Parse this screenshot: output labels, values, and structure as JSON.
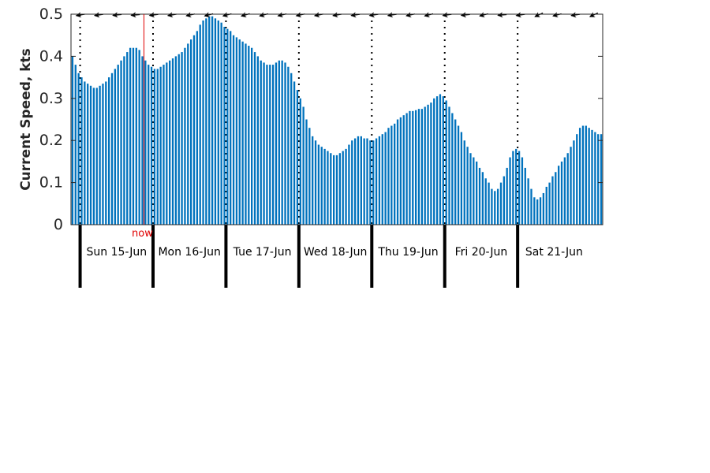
{
  "chart_data": {
    "type": "bar",
    "ylabel": "Current Speed, kts",
    "ylim": [
      0,
      0.5
    ],
    "yticks": [
      0,
      0.1,
      0.2,
      0.3,
      0.4,
      0.5
    ],
    "ytick_labels": [
      "0",
      "0.1",
      "0.2",
      "0.3",
      "0.4",
      "0.5"
    ],
    "grid": false,
    "legend": "none",
    "bar_color": "#0072bd",
    "now_color": "#e00000",
    "now_label": "now",
    "hours_per_bar": 1,
    "start": "2025-06-14T21:00",
    "now": "2025-06-15T21:00",
    "days": [
      {
        "label": "Sun 15-Jun",
        "start": "2025-06-15T00:00"
      },
      {
        "label": "Mon 16-Jun",
        "start": "2025-06-16T00:00"
      },
      {
        "label": "Tue 17-Jun",
        "start": "2025-06-17T00:00"
      },
      {
        "label": "Wed 18-Jun",
        "start": "2025-06-18T00:00"
      },
      {
        "label": "Thu 19-Jun",
        "start": "2025-06-19T00:00"
      },
      {
        "label": "Fri 20-Jun",
        "start": "2025-06-20T00:00"
      },
      {
        "label": "Sat 21-Jun",
        "start": "2025-06-21T00:00"
      }
    ],
    "direction_arrows_deg": [
      260,
      262,
      264,
      265,
      263,
      260,
      258,
      256,
      255,
      254,
      255,
      257,
      258,
      259,
      260,
      262,
      262,
      261,
      258,
      256,
      262,
      264,
      255,
      265,
      262,
      245,
      255,
      262,
      245
    ],
    "values": [
      0.4,
      0.38,
      0.36,
      0.35,
      0.34,
      0.335,
      0.33,
      0.325,
      0.325,
      0.33,
      0.335,
      0.34,
      0.35,
      0.36,
      0.37,
      0.38,
      0.39,
      0.4,
      0.41,
      0.42,
      0.42,
      0.42,
      0.415,
      0.4,
      0.39,
      0.38,
      0.375,
      0.37,
      0.37,
      0.375,
      0.38,
      0.385,
      0.39,
      0.395,
      0.4,
      0.405,
      0.41,
      0.42,
      0.43,
      0.44,
      0.45,
      0.46,
      0.475,
      0.485,
      0.49,
      0.495,
      0.495,
      0.49,
      0.485,
      0.48,
      0.47,
      0.465,
      0.46,
      0.45,
      0.445,
      0.44,
      0.435,
      0.43,
      0.425,
      0.42,
      0.41,
      0.4,
      0.39,
      0.385,
      0.38,
      0.38,
      0.38,
      0.385,
      0.39,
      0.39,
      0.385,
      0.375,
      0.36,
      0.34,
      0.32,
      0.3,
      0.28,
      0.25,
      0.23,
      0.21,
      0.2,
      0.19,
      0.185,
      0.18,
      0.175,
      0.17,
      0.165,
      0.165,
      0.17,
      0.175,
      0.18,
      0.19,
      0.2,
      0.205,
      0.21,
      0.21,
      0.205,
      0.205,
      0.2,
      0.2,
      0.205,
      0.21,
      0.215,
      0.22,
      0.23,
      0.235,
      0.24,
      0.25,
      0.255,
      0.26,
      0.265,
      0.27,
      0.27,
      0.272,
      0.275,
      0.275,
      0.28,
      0.285,
      0.29,
      0.3,
      0.305,
      0.31,
      0.305,
      0.295,
      0.28,
      0.265,
      0.25,
      0.235,
      0.22,
      0.2,
      0.185,
      0.17,
      0.16,
      0.15,
      0.135,
      0.125,
      0.11,
      0.1,
      0.085,
      0.08,
      0.085,
      0.1,
      0.115,
      0.135,
      0.16,
      0.175,
      0.18,
      0.175,
      0.16,
      0.135,
      0.11,
      0.085,
      0.065,
      0.06,
      0.065,
      0.075,
      0.09,
      0.1,
      0.115,
      0.125,
      0.14,
      0.15,
      0.16,
      0.17,
      0.185,
      0.2,
      0.215,
      0.23,
      0.235,
      0.235,
      0.23,
      0.225,
      0.22,
      0.215,
      0.215
    ]
  }
}
